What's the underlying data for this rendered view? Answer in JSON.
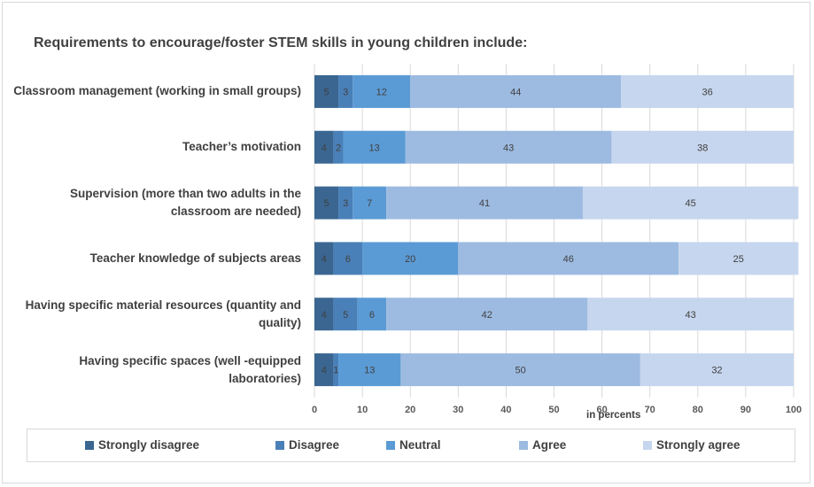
{
  "chart_data": {
    "type": "bar",
    "orientation": "horizontal",
    "stacked": true,
    "title": "Requirements to encourage/foster STEM skills in young children include:",
    "xlabel": "in percents",
    "xlim": [
      0,
      100
    ],
    "xticks": [
      "0",
      "10",
      "20",
      "30",
      "40",
      "50",
      "60",
      "70",
      "80",
      "90",
      "100"
    ],
    "grid": true,
    "legend_position": "bottom",
    "categories": [
      "Classroom management (working in small groups)",
      "Teacher’s motivation",
      "Supervision (more than two adults in the classroom are needed)",
      "Teacher knowledge of subjects areas",
      "Having specific material resources (quantity and quality)",
      "Having specific spaces (well -equipped laboratories)"
    ],
    "series": [
      {
        "name": "Strongly disagree",
        "color": "#3a6691",
        "values": [
          5,
          4,
          5,
          4,
          4,
          4
        ]
      },
      {
        "name": "Disagree",
        "color": "#4a80b8",
        "values": [
          3,
          2,
          3,
          6,
          5,
          1
        ]
      },
      {
        "name": "Neutral",
        "color": "#5b9bd5",
        "values": [
          12,
          13,
          7,
          20,
          6,
          13
        ]
      },
      {
        "name": "Agree",
        "color": "#9dbbe1",
        "values": [
          44,
          43,
          41,
          46,
          42,
          50
        ]
      },
      {
        "name": "Strongly agree",
        "color": "#c6d6ee",
        "values": [
          36,
          38,
          45,
          25,
          43,
          32
        ]
      }
    ]
  }
}
